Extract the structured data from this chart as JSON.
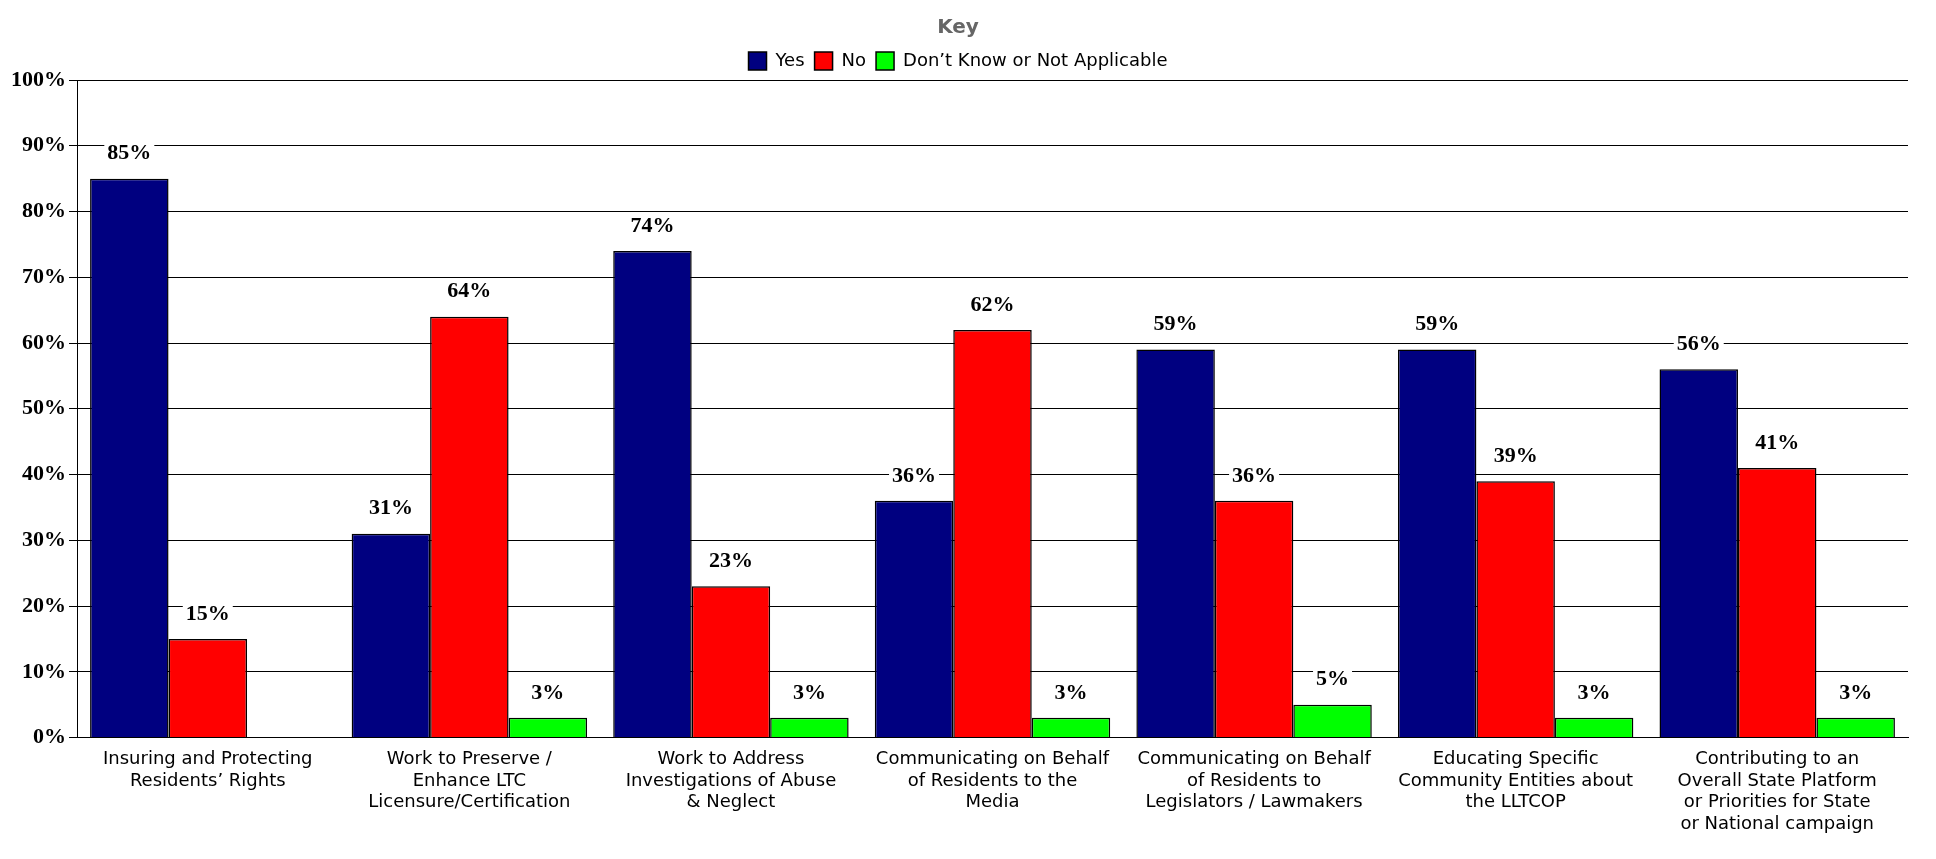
{
  "chart_data": {
    "type": "bar",
    "legend_title": "Key",
    "legend": "top",
    "categories": [
      "Insuring and Protecting Residents’ Rights",
      "Work to Preserve / Enhance LTC Licensure/Certification",
      "Work to Address Investigations of Abuse & Neglect",
      "Communicating on Behalf of Residents to the Media",
      "Communicating on Behalf of Residents to Legislators / Lawmakers",
      "Educating Specific Community Entities about the LLTCOP",
      "Contributing to an Overall State Platform or Priorities for State or National campaign"
    ],
    "series": [
      {
        "name": "Yes",
        "color": "#000080",
        "values": [
          85,
          31,
          74,
          36,
          59,
          59,
          56
        ],
        "value_labels": [
          "85%",
          "31%",
          "74%",
          "36%",
          "59%",
          "59%",
          "56%"
        ]
      },
      {
        "name": "No",
        "color": "#ff0000",
        "values": [
          15,
          64,
          23,
          62,
          36,
          39,
          41
        ],
        "value_labels": [
          "15%",
          "64%",
          "23%",
          "62%",
          "36%",
          "39%",
          "41%"
        ]
      },
      {
        "name": "Don’t Know or Not Applicable",
        "color": "#00ff00",
        "values": [
          0,
          3,
          3,
          3,
          5,
          3,
          3
        ],
        "value_labels": [
          null,
          "3%",
          "3%",
          "3%",
          "5%",
          "3%",
          "3%"
        ]
      }
    ],
    "ylim": [
      0,
      100
    ],
    "yticks": [
      {
        "value": 0,
        "label": "0%"
      },
      {
        "value": 10,
        "label": "10%"
      },
      {
        "value": 20,
        "label": "20%"
      },
      {
        "value": 30,
        "label": "30%"
      },
      {
        "value": 40,
        "label": "40%"
      },
      {
        "value": 50,
        "label": "50%"
      },
      {
        "value": 60,
        "label": "60%"
      },
      {
        "value": 70,
        "label": "70%"
      },
      {
        "value": 80,
        "label": "80%"
      },
      {
        "value": 90,
        "label": "90%"
      },
      {
        "value": 100,
        "label": "100%"
      }
    ],
    "grid": "y"
  }
}
